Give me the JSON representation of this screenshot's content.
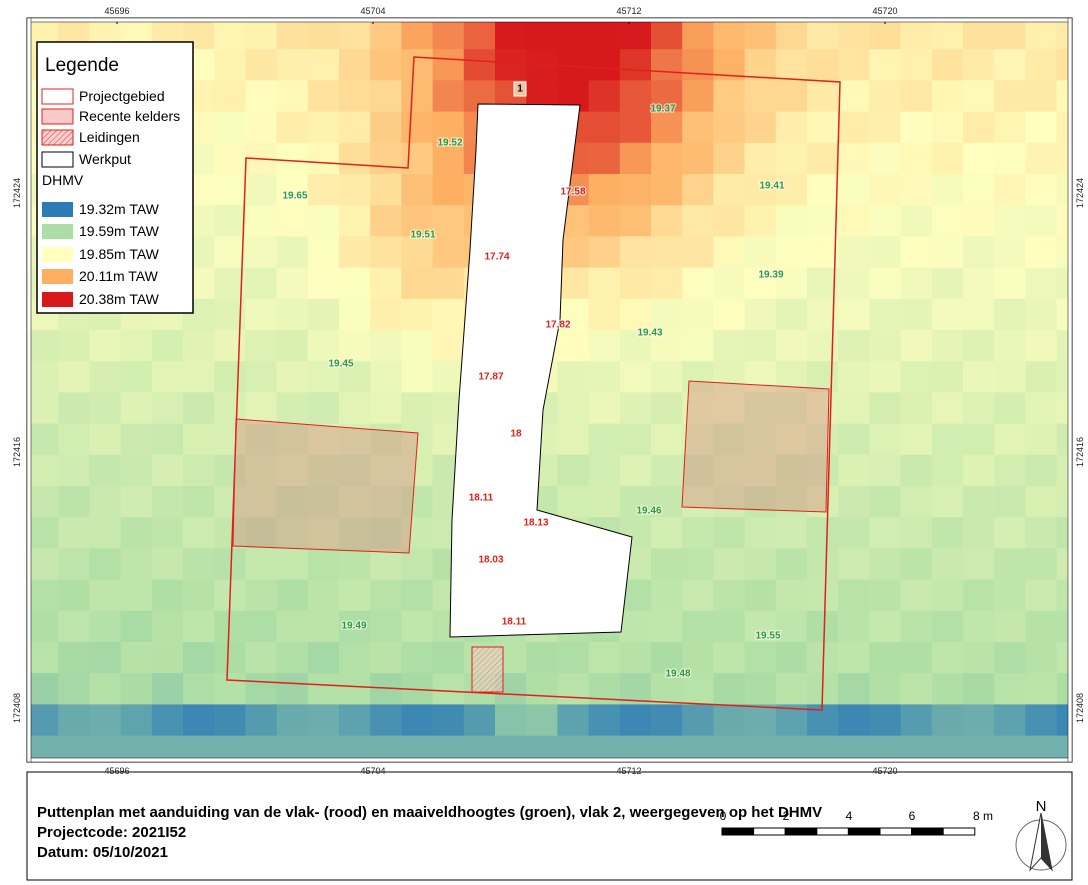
{
  "map": {
    "x_labels": [
      "45696",
      "45704",
      "45712",
      "45720"
    ],
    "y_labels": [
      "172424",
      "172416",
      "172408"
    ],
    "legend": {
      "title": "Legende",
      "items": [
        {
          "label": "Projectgebied"
        },
        {
          "label": "Recente kelders"
        },
        {
          "label": "Leidingen"
        },
        {
          "label": "Werkput"
        }
      ],
      "dhmv_title": "DHMV",
      "dhmv": [
        {
          "label": "19.32m TAW",
          "color": "#2c7bb6"
        },
        {
          "label": "19.59m TAW",
          "color": "#abdda4"
        },
        {
          "label": "19.85m TAW",
          "color": "#ffffbf"
        },
        {
          "label": "20.11m TAW",
          "color": "#fdae61"
        },
        {
          "label": "20.38m TAW",
          "color": "#d7191c"
        }
      ]
    },
    "werkput_id": "1",
    "green_labels": [
      "19.52",
      "19.37",
      "19.65",
      "19.41",
      "19.51",
      "19.39",
      "19.43",
      "19.45",
      "19.46",
      "19.49",
      "19.55",
      "19.48"
    ],
    "red_labels": [
      "17.58",
      "17.74",
      "17.82",
      "17.87",
      "18",
      "18.11",
      "18.13",
      "18.03",
      "18.11"
    ]
  },
  "footer": {
    "title": "Puttenplan met aanduiding van de vlak- (rood) en maaiveldhoogtes (groen), vlak 2, weergegeven op het DHMV",
    "code": "Projectcode: 2021I52",
    "date": "Datum: 05/10/2021",
    "scale": [
      "0",
      "2",
      "4",
      "6",
      "8 m"
    ],
    "north": "N"
  }
}
